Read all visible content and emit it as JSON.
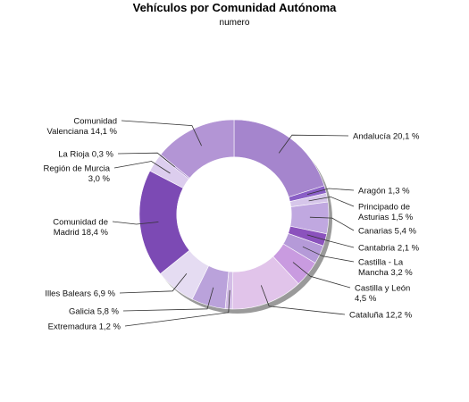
{
  "title": "Vehículos por Comunidad Autónoma",
  "subtitle": "numero",
  "chart_data": {
    "type": "pie",
    "title": "Vehículos por Comunidad Autónoma",
    "subtitle": "numero",
    "donut": true,
    "unit": "%",
    "slices": [
      {
        "name": "Andalucía",
        "value": 20.1,
        "label_lines": [
          "Andalucía 20,1 %"
        ],
        "color": "#a585cd"
      },
      {
        "name": "Aragón",
        "value": 1.3,
        "label_lines": [
          "Aragón 1,3 %"
        ],
        "color": "#8a5fc6"
      },
      {
        "name": "Principado de Asturias",
        "value": 1.5,
        "label_lines": [
          "Principado de",
          "Asturias 1,5 %"
        ],
        "color": "#d6c6ea"
      },
      {
        "name": "Canarias",
        "value": 5.4,
        "label_lines": [
          "Canarias 5,4 %"
        ],
        "color": "#c0a8e0"
      },
      {
        "name": "Cantabria",
        "value": 2.1,
        "label_lines": [
          "Cantabria 2,1 %"
        ],
        "color": "#8b52bd"
      },
      {
        "name": "Castilla - La Mancha",
        "value": 3.2,
        "label_lines": [
          "Castilla - La",
          "Mancha 3,2 %"
        ],
        "color": "#b59ad8"
      },
      {
        "name": "Castilla y León",
        "value": 4.5,
        "label_lines": [
          "Castilla y León",
          "4,5 %"
        ],
        "color": "#c99be0"
      },
      {
        "name": "Cataluña",
        "value": 12.2,
        "label_lines": [
          "Cataluña 12,2 %"
        ],
        "color": "#e1c4ea"
      },
      {
        "name": "Extremadura",
        "value": 1.2,
        "label_lines": [
          "Extremadura 1,2 %"
        ],
        "color": "#d3bde6"
      },
      {
        "name": "Galicia",
        "value": 5.8,
        "label_lines": [
          "Galicia 5,8 %"
        ],
        "color": "#baa2db"
      },
      {
        "name": "Illes Balears",
        "value": 6.9,
        "label_lines": [
          "Illes Balears 6,9 %"
        ],
        "color": "#e5dcf2"
      },
      {
        "name": "Comunidad de Madrid",
        "value": 18.4,
        "label_lines": [
          "Comunidad de",
          "Madrid 18,4 %"
        ],
        "color": "#7c4ab4"
      },
      {
        "name": "Región de Murcia",
        "value": 3.0,
        "label_lines": [
          "Región de Murcia",
          "3,0 %"
        ],
        "color": "#dccdee"
      },
      {
        "name": "La Rioja",
        "value": 0.3,
        "label_lines": [
          "La Rioja 0,3 %"
        ],
        "color": "#9a79c4"
      },
      {
        "name": "Comunidad Valenciana",
        "value": 14.1,
        "label_lines": [
          "Comunidad",
          "Valenciana 14,1 %"
        ],
        "color": "#b395d5"
      }
    ]
  }
}
